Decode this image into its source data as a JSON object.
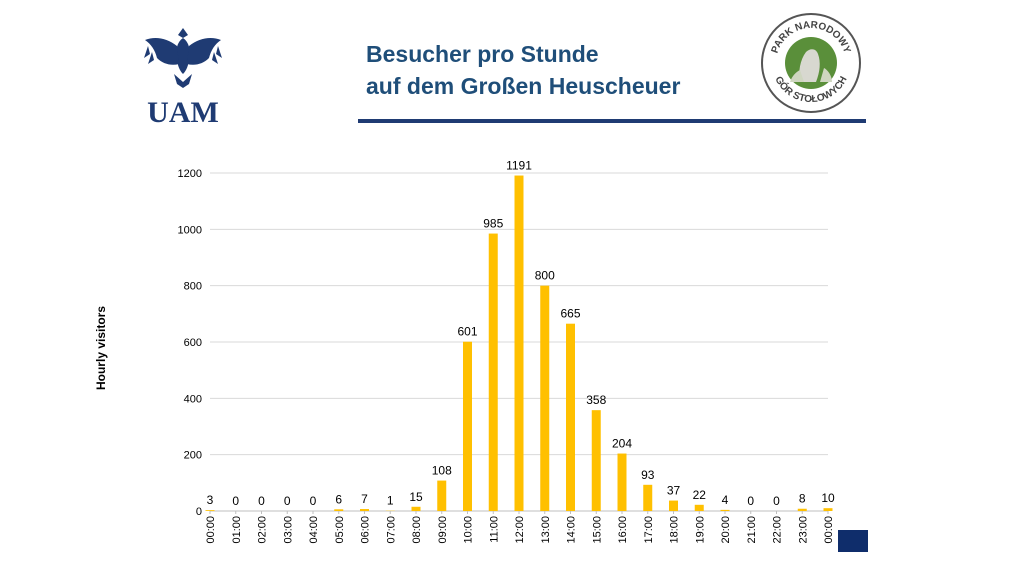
{
  "header": {
    "title_line1": "Besucher pro Stunde",
    "title_line2": "auf dem Großen Heuscheuer",
    "uam_logo_text": "UAM",
    "park_logo_text_top": "PARK NARODOWY",
    "park_logo_text_bottom": "GÓR STOŁOWYCH"
  },
  "colors": {
    "title": "#1f4e79",
    "rule": "#1f3b73",
    "bar": "#ffc000",
    "grid": "#d9d9d9",
    "corner": "#0f2d6b"
  },
  "chart_data": {
    "type": "bar",
    "categories": [
      "00:00",
      "01:00",
      "02:00",
      "03:00",
      "04:00",
      "05:00",
      "06:00",
      "07:00",
      "08:00",
      "09:00",
      "10:00",
      "11:00",
      "12:00",
      "13:00",
      "14:00",
      "15:00",
      "16:00",
      "17:00",
      "18:00",
      "19:00",
      "20:00",
      "21:00",
      "22:00",
      "23:00",
      "00:00"
    ],
    "values": [
      3,
      0,
      0,
      0,
      0,
      6,
      7,
      1,
      15,
      108,
      601,
      985,
      1191,
      800,
      665,
      358,
      204,
      93,
      37,
      22,
      4,
      0,
      0,
      8,
      10
    ],
    "ylabel": "Hourly visitors",
    "xlabel": "",
    "ylim": [
      0,
      1200
    ],
    "yticks": [
      0,
      200,
      400,
      600,
      800,
      1000,
      1200
    ],
    "grid": true,
    "data_labels": true,
    "x_tick_rotation": "vertical"
  }
}
